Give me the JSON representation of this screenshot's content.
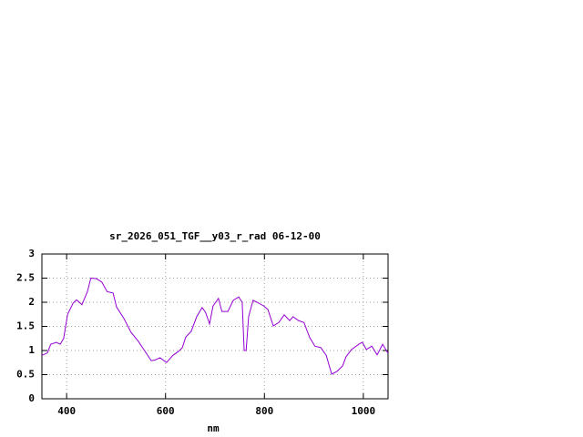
{
  "chart_data": {
    "type": "line",
    "title": "sr_2026_051_TGF__y03_r_rad 06-12-00",
    "x_label": "nm",
    "series": [
      {
        "color": "#9400d3",
        "x": [
          350,
          361,
          368,
          379,
          387,
          394,
          402,
          413,
          420,
          431,
          442,
          449,
          460,
          471,
          482,
          494,
          501,
          516,
          530,
          545,
          560,
          571,
          578,
          589,
          602,
          615,
          626,
          634,
          641,
          652,
          663,
          674,
          681,
          689,
          696,
          707,
          714,
          726,
          737,
          748,
          755,
          759,
          763,
          768,
          777,
          785,
          799,
          807,
          818,
          829,
          840,
          851,
          858,
          869,
          880,
          891,
          902,
          914,
          925,
          936,
          947,
          958,
          965,
          976,
          991,
          998,
          1006,
          1017,
          1028,
          1039,
          1050
        ],
        "values": [
          0.9,
          0.95,
          1.13,
          1.17,
          1.13,
          1.25,
          1.75,
          1.98,
          2.05,
          1.95,
          2.22,
          2.5,
          2.49,
          2.42,
          2.22,
          2.19,
          1.9,
          1.66,
          1.38,
          1.19,
          0.96,
          0.79,
          0.8,
          0.85,
          0.75,
          0.9,
          0.98,
          1.06,
          1.28,
          1.4,
          1.7,
          1.89,
          1.79,
          1.55,
          1.92,
          2.08,
          1.81,
          1.81,
          2.04,
          2.11,
          2.0,
          1.0,
          1.0,
          1.7,
          2.04,
          2.0,
          1.92,
          1.85,
          1.51,
          1.58,
          1.74,
          1.62,
          1.7,
          1.62,
          1.58,
          1.28,
          1.09,
          1.06,
          0.9,
          0.51,
          0.57,
          0.68,
          0.87,
          1.02,
          1.13,
          1.17,
          1.02,
          1.09,
          0.91,
          1.13,
          0.94
        ]
      }
    ],
    "xlim": [
      350,
      1050
    ],
    "xticks": [
      400,
      600,
      800,
      1000
    ],
    "ylim": [
      0,
      3
    ],
    "yticks": [
      0,
      0.5,
      1,
      1.5,
      2,
      2.5,
      3
    ],
    "grid": true
  }
}
